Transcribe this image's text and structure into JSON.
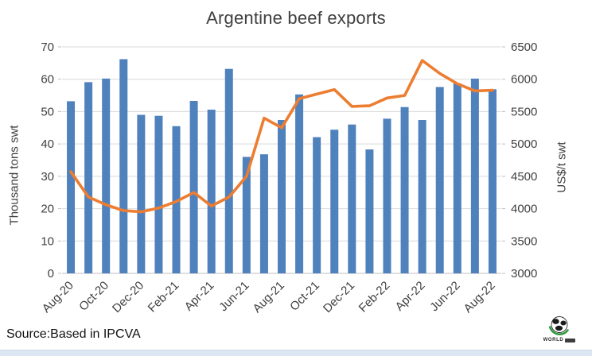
{
  "chart_data": {
    "type": "combo",
    "title": "Argentine beef exports",
    "categories": [
      "Aug-20",
      "Sep-20",
      "Oct-20",
      "Nov-20",
      "Dec-20",
      "Jan-21",
      "Feb-21",
      "Mar-21",
      "Apr-21",
      "May-21",
      "Jun-21",
      "Jul-21",
      "Aug-21",
      "Sep-21",
      "Oct-21",
      "Nov-21",
      "Dec-21",
      "Jan-22",
      "Feb-22",
      "Mar-22",
      "Apr-22",
      "May-22",
      "Jun-22",
      "Jul-22",
      "Aug-22"
    ],
    "x_tick_labels": [
      "Aug-20",
      "Oct-20",
      "Dec-20",
      "Feb-21",
      "Apr-21",
      "Jun-21",
      "Aug-21",
      "Oct-21",
      "Dec-21",
      "Feb-22",
      "Apr-22",
      "Jun-22",
      "Aug-22"
    ],
    "x_tick_every": 2,
    "series": [
      {
        "name": "Thousand tons swt",
        "type": "bar",
        "axis": "left",
        "color": "#4F81BD",
        "values": [
          53.2,
          59.1,
          60.2,
          66.2,
          49.0,
          48.7,
          45.5,
          53.3,
          50.6,
          63.2,
          36.0,
          36.8,
          47.4,
          55.3,
          42.1,
          44.4,
          46.0,
          38.3,
          47.8,
          51.4,
          47.4,
          57.6,
          58.7,
          60.2,
          56.9
        ]
      },
      {
        "name": "US$/t swt",
        "type": "line",
        "axis": "right",
        "color": "#ED7D31",
        "values": [
          4570,
          4180,
          4060,
          3970,
          3950,
          4010,
          4110,
          4250,
          4040,
          4180,
          4500,
          5400,
          5250,
          5700,
          5770,
          5840,
          5580,
          5590,
          5710,
          5750,
          6290,
          6090,
          5930,
          5820,
          5830
        ]
      }
    ],
    "ylabel_left": "Thousand tons swt",
    "ylabel_right": "US$/t swt",
    "ylim_left": [
      0,
      70
    ],
    "ytick_step_left": 10,
    "ylim_right": [
      3000,
      6500
    ],
    "ytick_step_right": 500,
    "grid": true,
    "legend": "none",
    "gridline_color": "#D9D9D9",
    "axis_line_color": "#BFBFBF",
    "tick_label_color": "#404040",
    "title_color": "#404040"
  },
  "source": "Source:Based in IPCVA",
  "logo": {
    "text": "WORLD"
  }
}
